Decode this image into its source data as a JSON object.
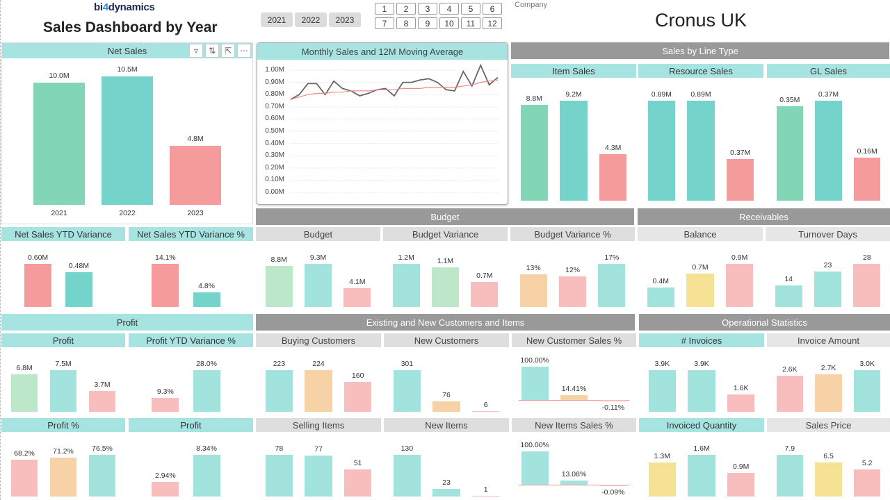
{
  "header": {
    "logo_a": "bi",
    "logo_b": "dynamics",
    "title": "Sales Dashboard by Year",
    "years": [
      "2021",
      "2022",
      "2023"
    ],
    "months": [
      "1",
      "2",
      "3",
      "4",
      "5",
      "6",
      "7",
      "8",
      "9",
      "10",
      "11",
      "12"
    ],
    "company_label": "Company",
    "company_name": "Cronus UK"
  },
  "colors": {
    "green": "#83d6b5",
    "teal": "#74d4cb",
    "red": "#f59b9b",
    "pale_green": "#bde7c9",
    "pale_teal": "#a3e3de",
    "pale_red": "#f8bebe",
    "peach": "#f7d2a6",
    "yellow": "#f5e294",
    "header_grey": "#999999"
  },
  "net_sales": {
    "title": "Net Sales",
    "tool_icons": [
      "filter-icon",
      "drill-icon",
      "focus-mode-icon",
      "more-options-icon"
    ],
    "years": [
      "2021",
      "2022",
      "2023"
    ],
    "values": [
      10.0,
      10.5,
      4.8
    ],
    "labels": [
      "10.0M",
      "10.5M",
      "4.8M"
    ]
  },
  "chart_data": {
    "type": "line",
    "title": "Monthly Sales and 12M Moving Average",
    "y_ticks": [
      "1.00M",
      "0.90M",
      "0.80M",
      "0.70M",
      "0.60M",
      "0.50M",
      "0.40M",
      "0.30M",
      "0.20M",
      "0.10M",
      "0.00M"
    ],
    "ylim": [
      0,
      1.0
    ],
    "series": [
      {
        "name": "Monthly Sales",
        "values": [
          0.76,
          0.8,
          0.89,
          0.89,
          0.8,
          0.91,
          0.85,
          0.83,
          0.79,
          0.81,
          0.84,
          0.85,
          0.79,
          0.9,
          0.9,
          0.92,
          0.93,
          0.9,
          0.84,
          0.83,
          0.99,
          0.87,
          1.04,
          0.88,
          0.94
        ]
      },
      {
        "name": "12M Moving Average",
        "values": [
          0.76,
          0.78,
          0.8,
          0.81,
          0.81,
          0.82,
          0.82,
          0.83,
          0.83,
          0.83,
          0.84,
          0.84,
          0.84,
          0.85,
          0.85,
          0.85,
          0.86,
          0.86,
          0.86,
          0.86,
          0.87,
          0.88,
          0.9,
          0.91,
          0.92
        ]
      }
    ]
  },
  "sections": {
    "line_type": "Sales by Line Type",
    "budget": "Budget",
    "receivables": "Receivables",
    "profit": "Profit",
    "customers_items": "Existing and New Customers and Items",
    "operational": "Operational Statistics"
  },
  "tiles": [
    {
      "title": "Item Sales",
      "values": [
        8.8,
        9.2,
        4.3
      ],
      "labels": [
        "8.8M",
        "9.2M",
        "4.3M"
      ],
      "colors": [
        "green",
        "teal",
        "red"
      ]
    },
    {
      "title": "Resource Sales",
      "values": [
        0.89,
        0.89,
        0.37
      ],
      "labels": [
        "0.89M",
        "0.89M",
        "0.37M"
      ],
      "colors": [
        "teal",
        "teal",
        "red"
      ]
    },
    {
      "title": "GL Sales",
      "values": [
        0.35,
        0.37,
        0.16
      ],
      "labels": [
        "0.35M",
        "0.37M",
        "0.16M"
      ],
      "colors": [
        "green",
        "teal",
        "red"
      ]
    },
    {
      "title": "Net Sales YTD Variance",
      "values": [
        0.6,
        0.48
      ],
      "labels": [
        "0.60M",
        "0.48M"
      ],
      "colors": [
        "red",
        "teal"
      ]
    },
    {
      "title": "Net Sales YTD Variance %",
      "values": [
        14.1,
        4.8
      ],
      "labels": [
        "14.1%",
        "4.8%"
      ],
      "colors": [
        "red",
        "teal"
      ]
    },
    {
      "title": "Budget",
      "values": [
        8.8,
        9.3,
        4.1
      ],
      "labels": [
        "8.8M",
        "9.3M",
        "4.1M"
      ],
      "colors": [
        "pale_green",
        "pale_teal",
        "pale_red"
      ]
    },
    {
      "title": "Budget Variance",
      "values": [
        1.2,
        1.1,
        0.7
      ],
      "labels": [
        "1.2M",
        "1.1M",
        "0.7M"
      ],
      "colors": [
        "pale_teal",
        "pale_green",
        "pale_red"
      ]
    },
    {
      "title": "Budget Variance %",
      "values": [
        13,
        12,
        17
      ],
      "labels": [
        "13%",
        "12%",
        "17%"
      ],
      "colors": [
        "peach",
        "pale_red",
        "pale_teal"
      ]
    },
    {
      "title": "Balance",
      "values": [
        0.4,
        0.7,
        0.9
      ],
      "labels": [
        "0.4M",
        "0.7M",
        "0.9M"
      ],
      "colors": [
        "pale_teal",
        "yellow",
        "pale_red"
      ]
    },
    {
      "title": "Turnover Days",
      "values": [
        14,
        23,
        28
      ],
      "labels": [
        "14",
        "23",
        "28"
      ],
      "colors": [
        "pale_teal",
        "pale_teal",
        "pale_red"
      ]
    },
    {
      "title": "Profit",
      "values": [
        6.8,
        7.5,
        3.7
      ],
      "labels": [
        "6.8M",
        "7.5M",
        "3.7M"
      ],
      "colors": [
        "pale_green",
        "pale_teal",
        "pale_red"
      ]
    },
    {
      "title": "Profit YTD Variance %",
      "values": [
        9.3,
        28.0
      ],
      "labels": [
        "9.3%",
        "28.0%"
      ],
      "colors": [
        "pale_red",
        "pale_teal"
      ]
    },
    {
      "title": "Buying Customers",
      "values": [
        223,
        224,
        160
      ],
      "labels": [
        "223",
        "224",
        "160"
      ],
      "colors": [
        "pale_teal",
        "peach",
        "pale_red"
      ]
    },
    {
      "title": "New Customers",
      "values": [
        301,
        76,
        6
      ],
      "labels": [
        "301",
        "76",
        "6"
      ],
      "colors": [
        "pale_teal",
        "peach",
        "pale_red"
      ]
    },
    {
      "title": "New Customer Sales %",
      "values": [
        100.0,
        14.41,
        -0.11
      ],
      "labels": [
        "100.00%",
        "14.41%",
        "-0.11%"
      ],
      "colors": [
        "pale_teal",
        "peach",
        "pale_red"
      ]
    },
    {
      "title": "# Invoices",
      "values": [
        3.9,
        3.9,
        1.6
      ],
      "labels": [
        "3.9K",
        "3.9K",
        "1.6K"
      ],
      "colors": [
        "pale_teal",
        "pale_teal",
        "pale_red"
      ]
    },
    {
      "title": "Invoice Amount",
      "values": [
        2.6,
        2.7,
        3.0
      ],
      "labels": [
        "2.6K",
        "2.7K",
        "3.0K"
      ],
      "colors": [
        "pale_red",
        "peach",
        "pale_teal"
      ]
    },
    {
      "title": "Profit %",
      "values": [
        68.2,
        71.2,
        76.5
      ],
      "labels": [
        "68.2%",
        "71.2%",
        "76.5%"
      ],
      "colors": [
        "pale_red",
        "peach",
        "pale_teal"
      ]
    },
    {
      "title": "Profit",
      "values": [
        2.94,
        8.34
      ],
      "labels": [
        "2.94%",
        "8.34%"
      ],
      "colors": [
        "pale_red",
        "pale_teal"
      ]
    },
    {
      "title": "Selling Items",
      "values": [
        78,
        77,
        51
      ],
      "labels": [
        "78",
        "77",
        "51"
      ],
      "colors": [
        "pale_teal",
        "pale_teal",
        "pale_red"
      ]
    },
    {
      "title": "New Items",
      "values": [
        130,
        23,
        1
      ],
      "labels": [
        "130",
        "23",
        "1"
      ],
      "colors": [
        "pale_teal",
        "pale_teal",
        "pale_red"
      ]
    },
    {
      "title": "New Items Sales %",
      "values": [
        100.0,
        13.08,
        -0.09
      ],
      "labels": [
        "100.00%",
        "13.08%",
        "-0.09%"
      ],
      "colors": [
        "pale_teal",
        "pale_teal",
        "pale_red"
      ]
    },
    {
      "title": "Invoiced Quantity",
      "values": [
        1.3,
        1.6,
        0.9
      ],
      "labels": [
        "1.3M",
        "1.6M",
        "0.9M"
      ],
      "colors": [
        "yellow",
        "pale_teal",
        "pale_red"
      ]
    },
    {
      "title": "Sales Price",
      "values": [
        7.9,
        6.5,
        5.2
      ],
      "labels": [
        "7.9",
        "6.5",
        "5.2"
      ],
      "colors": [
        "pale_teal",
        "yellow",
        "pale_red"
      ]
    }
  ]
}
